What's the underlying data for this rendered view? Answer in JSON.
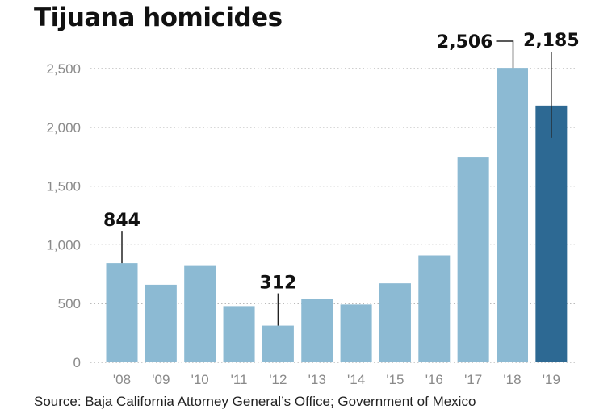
{
  "chart_data": {
    "type": "bar",
    "title": "Tijuana homicides",
    "categories": [
      "'08",
      "'09",
      "'10",
      "'11",
      "'12",
      "'13",
      "'14",
      "'15",
      "'16",
      "'17",
      "'18",
      "'19"
    ],
    "values": [
      844,
      660,
      820,
      478,
      312,
      540,
      492,
      672,
      910,
      1744,
      2506,
      2185
    ],
    "ylim": [
      0,
      2500
    ],
    "yticks": [
      "0",
      "500",
      "1,000",
      "1,500",
      "2,000",
      "2,500"
    ],
    "data_labels": [
      {
        "category": "'08",
        "text": "844"
      },
      {
        "category": "'12",
        "text": "312"
      },
      {
        "category": "'18",
        "text": "2,506"
      },
      {
        "category": "'19",
        "text": "2,185"
      }
    ],
    "highlight_category": "'19",
    "grid": "dotted horizontal",
    "xlabel": "",
    "ylabel": ""
  },
  "colors": {
    "bar": "#8cbad3",
    "highlight": "#2d6993",
    "grid": "#b0b0b0",
    "leader": "#222222"
  },
  "source": "Source: Baja California Attorney General’s Office; Government of Mexico"
}
